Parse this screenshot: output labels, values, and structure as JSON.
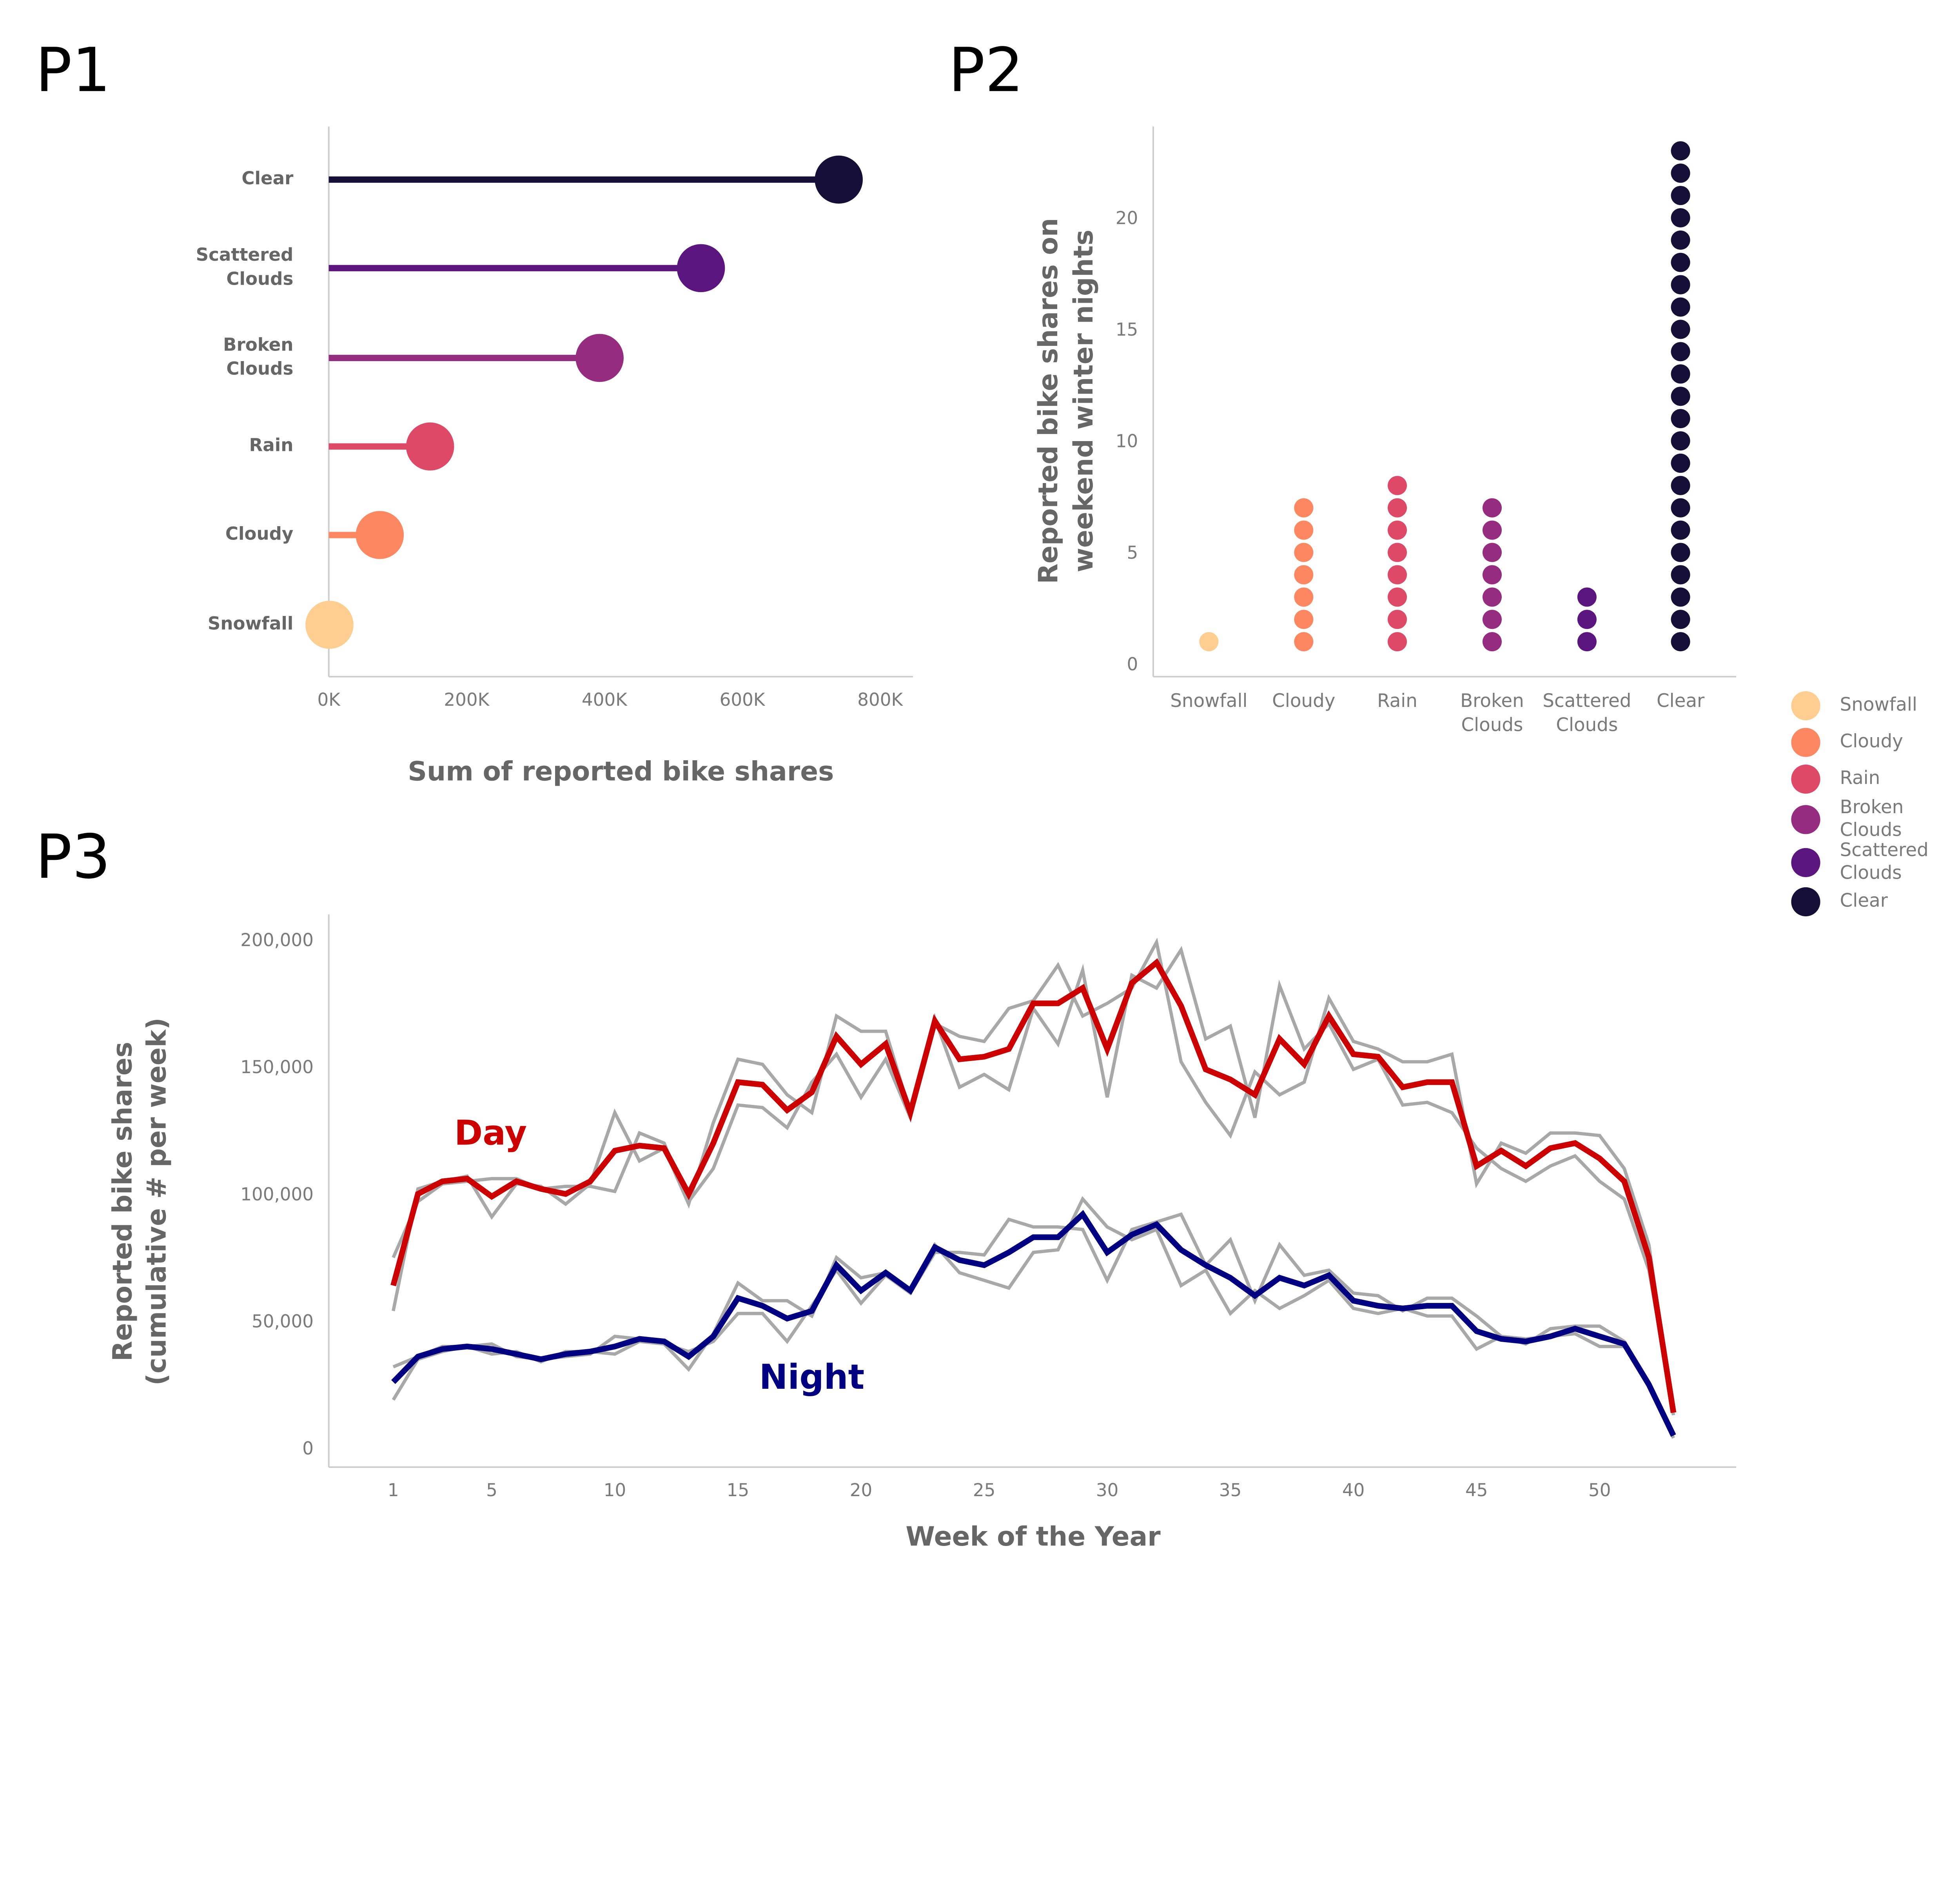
{
  "panel_labels": [
    "P1",
    "P2",
    "P3"
  ],
  "colors": {
    "Snowfall": "#FECE91",
    "Cloudy": "#FC8761",
    "Rain": "#DE4968",
    "Broken Clouds": "#952C80",
    "Scattered Clouds": "#5A167E",
    "Clear": "#150E37",
    "day": "#CC0000",
    "night": "#000080",
    "years": "#A8A8A8",
    "axis": "#CCCCCC"
  },
  "legend": {
    "placement": "right",
    "entries": [
      {
        "key": "Snowfall",
        "lines": [
          "Snowfall"
        ]
      },
      {
        "key": "Cloudy",
        "lines": [
          "Cloudy"
        ]
      },
      {
        "key": "Rain",
        "lines": [
          "Rain"
        ]
      },
      {
        "key": "Broken Clouds",
        "lines": [
          "Broken",
          "Clouds"
        ]
      },
      {
        "key": "Scattered Clouds",
        "lines": [
          "Scattered",
          "Clouds"
        ]
      },
      {
        "key": "Clear",
        "lines": [
          "Clear"
        ]
      }
    ]
  },
  "chart_data": [
    {
      "id": "P1",
      "type": "lollipop",
      "orientation": "horizontal",
      "categories": [
        "Clear",
        "Scattered Clouds",
        "Broken Clouds",
        "Rain",
        "Cloudy",
        "Snowfall"
      ],
      "category_lines": [
        [
          "Clear"
        ],
        [
          "Scattered",
          "Clouds"
        ],
        [
          "Broken",
          "Clouds"
        ],
        [
          "Rain"
        ],
        [
          "Cloudy"
        ],
        [
          "Snowfall"
        ]
      ],
      "values": [
        740000,
        540000,
        393000,
        147000,
        74000,
        1000
      ],
      "xlabel": "Sum of reported bike shares",
      "ylabel": "",
      "xlim": [
        0,
        800000
      ],
      "xticks": [
        0,
        200000,
        400000,
        600000,
        800000
      ],
      "xtick_labels": [
        "0K",
        "200K",
        "400K",
        "600K",
        "800K"
      ],
      "grid": false
    },
    {
      "id": "P2",
      "type": "dotplot",
      "categories": [
        "Snowfall",
        "Cloudy",
        "Rain",
        "Broken Clouds",
        "Scattered Clouds",
        "Clear"
      ],
      "category_lines": [
        [
          "Snowfall"
        ],
        [
          "Cloudy"
        ],
        [
          "Rain"
        ],
        [
          "Broken",
          "Clouds"
        ],
        [
          "Scattered",
          "Clouds"
        ],
        [
          "Clear"
        ]
      ],
      "values": [
        1,
        7,
        8,
        7,
        3,
        23
      ],
      "ylabel_lines": [
        "Reported bike shares on",
        "weekend winter nights"
      ],
      "xlabel": "",
      "ylim": [
        0,
        24
      ],
      "yticks": [
        0,
        5,
        10,
        15,
        20
      ],
      "grid": false
    },
    {
      "id": "P3",
      "type": "line",
      "xlabel": "Week of the Year",
      "ylabel_lines": [
        "Reported bike shares",
        "(cumulative # per week)"
      ],
      "xlim": [
        1,
        53
      ],
      "ylim": [
        0,
        200000
      ],
      "xticks": [
        1,
        5,
        10,
        15,
        20,
        25,
        30,
        35,
        40,
        45,
        50
      ],
      "yticks": [
        0,
        50000,
        100000,
        150000,
        200000
      ],
      "ytick_labels": [
        "0",
        "50,000",
        "100,000",
        "150,000",
        "200,000"
      ],
      "grid": false,
      "annotations": [
        {
          "text": "Day",
          "series": "day"
        },
        {
          "text": "Night",
          "series": "night"
        }
      ],
      "series": [
        {
          "group": "day",
          "role": "year",
          "values": [
            54000,
            102000,
            105000,
            107000,
            91000,
            104000,
            103000,
            96000,
            104000,
            132000,
            113000,
            118000,
            96000,
            128000,
            153000,
            151000,
            139000,
            132000,
            170000,
            164000,
            164000,
            132000,
            167000,
            162000,
            160000,
            173000,
            176000,
            190000,
            170000,
            175000,
            181000,
            199000,
            152000,
            136000,
            123000,
            148000,
            139000,
            144000,
            177000,
            160000,
            157000,
            152000,
            152000,
            155000,
            104000,
            120000,
            116000,
            124000,
            124000,
            123000,
            110000,
            80000,
            13000
          ]
        },
        {
          "group": "day",
          "role": "year",
          "values": [
            75000,
            97000,
            104000,
            105000,
            106000,
            106000,
            102000,
            103000,
            103000,
            101000,
            124000,
            120000,
            97000,
            110000,
            135000,
            134000,
            126000,
            144000,
            155000,
            138000,
            153000,
            130000,
            169000,
            142000,
            147000,
            141000,
            173000,
            159000,
            188000,
            138000,
            186000,
            181000,
            196000,
            161000,
            166000,
            130000,
            182000,
            157000,
            167000,
            149000,
            153000,
            135000,
            136000,
            132000,
            118000,
            110000,
            105000,
            111000,
            115000,
            105000,
            98000,
            70000,
            15000
          ]
        },
        {
          "group": "night",
          "role": "year",
          "values": [
            19000,
            35000,
            38000,
            40000,
            41000,
            36000,
            35000,
            36000,
            37000,
            44000,
            43000,
            41000,
            31000,
            45000,
            65000,
            58000,
            58000,
            52000,
            75000,
            67000,
            69000,
            62000,
            80000,
            69000,
            66000,
            63000,
            77000,
            78000,
            98000,
            87000,
            82000,
            86000,
            64000,
            70000,
            53000,
            62000,
            55000,
            60000,
            66000,
            55000,
            53000,
            55000,
            52000,
            52000,
            39000,
            44000,
            43000,
            44000,
            45000,
            40000,
            40000,
            25000,
            4000
          ]
        },
        {
          "group": "night",
          "role": "year",
          "values": [
            32000,
            36000,
            40000,
            40000,
            37000,
            38000,
            34000,
            38000,
            38000,
            37000,
            42000,
            41000,
            38000,
            42000,
            53000,
            53000,
            42000,
            56000,
            70000,
            57000,
            68000,
            61000,
            77000,
            77000,
            76000,
            90000,
            87000,
            87000,
            86000,
            66000,
            86000,
            89000,
            92000,
            72000,
            82000,
            58000,
            80000,
            68000,
            70000,
            61000,
            60000,
            54000,
            59000,
            59000,
            52000,
            44000,
            41000,
            47000,
            48000,
            48000,
            42000,
            26000,
            4000
          ]
        },
        {
          "group": "day",
          "role": "mean",
          "name": "Day",
          "values": [
            64000,
            100000,
            105000,
            106000,
            99000,
            105000,
            102000,
            100000,
            105000,
            117000,
            119000,
            118000,
            100000,
            120000,
            144000,
            143000,
            133000,
            140000,
            162000,
            151000,
            159000,
            132000,
            168000,
            153000,
            154000,
            157000,
            175000,
            175000,
            181000,
            157000,
            183000,
            191000,
            174000,
            149000,
            145000,
            139000,
            161000,
            151000,
            170000,
            155000,
            154000,
            142000,
            144000,
            144000,
            111000,
            117000,
            111000,
            118000,
            120000,
            114000,
            105000,
            75000,
            14000
          ]
        },
        {
          "group": "night",
          "role": "mean",
          "name": "Night",
          "values": [
            26000,
            36000,
            39000,
            40000,
            39000,
            37000,
            35000,
            37000,
            38000,
            40000,
            43000,
            42000,
            36000,
            44000,
            59000,
            56000,
            51000,
            54000,
            72000,
            62000,
            69000,
            62000,
            79000,
            74000,
            72000,
            77000,
            83000,
            83000,
            92000,
            77000,
            84000,
            88000,
            78000,
            72000,
            67000,
            60000,
            67000,
            64000,
            68000,
            58000,
            56000,
            55000,
            56000,
            56000,
            46000,
            43000,
            42000,
            44000,
            47000,
            44000,
            41000,
            25000,
            5000
          ]
        }
      ]
    }
  ]
}
